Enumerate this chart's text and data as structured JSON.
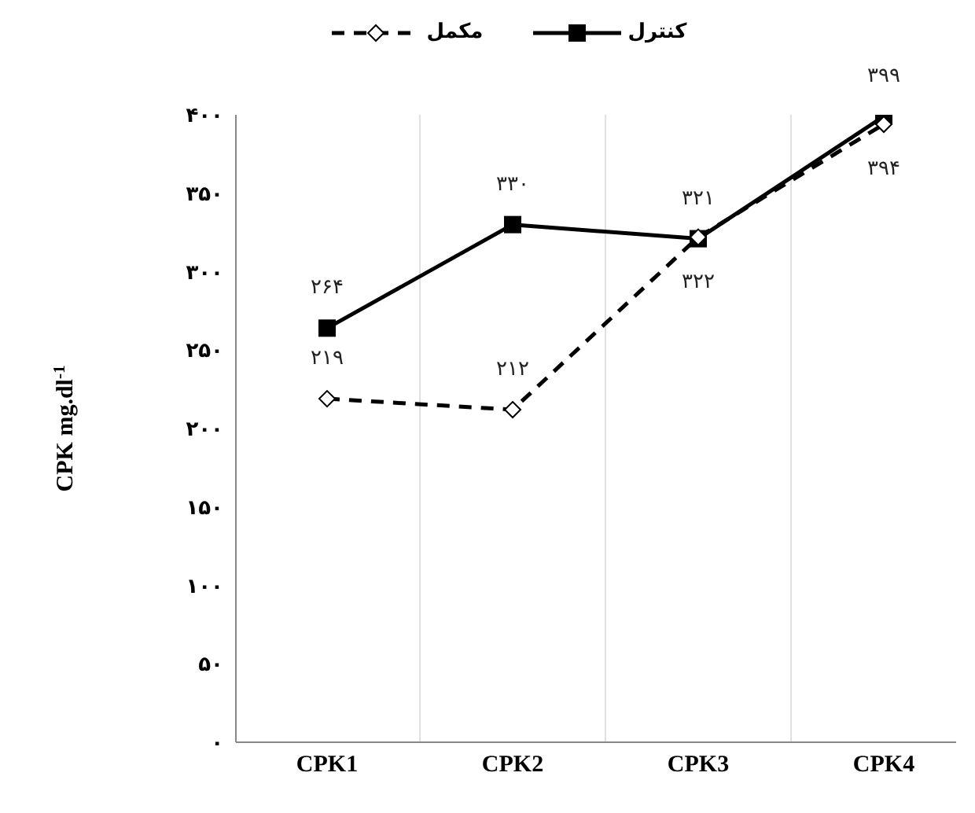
{
  "chart_data": {
    "type": "line",
    "ylabel": "CPK mg.dl$^{-1}$",
    "categories": [
      "CPK1",
      "CPK2",
      "CPK3",
      "CPK4"
    ],
    "series": [
      {
        "name": "کنترل",
        "color": "#000000",
        "marker": "square",
        "line_style": "solid",
        "values": [
          264,
          330,
          321,
          399
        ],
        "value_labels": [
          "۲۶۴",
          "۳۳۰",
          "۳۲۱",
          "۳۹۹"
        ]
      },
      {
        "name": "مکمل",
        "color": "#000000",
        "marker": "diamond",
        "line_style": "dashed",
        "values": [
          219,
          212,
          322,
          394
        ],
        "value_labels": [
          "۲۱۹",
          "۲۱۲",
          "۳۲۲",
          "۳۹۴"
        ]
      }
    ],
    "ylim": [
      0,
      400
    ],
    "yticks": [
      {
        "value": 0,
        "label": "۰"
      },
      {
        "value": 50,
        "label": "۵۰"
      },
      {
        "value": 100,
        "label": "۱۰۰"
      },
      {
        "value": 150,
        "label": "۱۵۰"
      },
      {
        "value": 200,
        "label": "۲۰۰"
      },
      {
        "value": 250,
        "label": "۲۵۰"
      },
      {
        "value": 300,
        "label": "۳۰۰"
      },
      {
        "value": 350,
        "label": "۳۵۰"
      },
      {
        "value": 400,
        "label": "۴۰۰"
      }
    ],
    "grid": "x",
    "legend": "top"
  }
}
